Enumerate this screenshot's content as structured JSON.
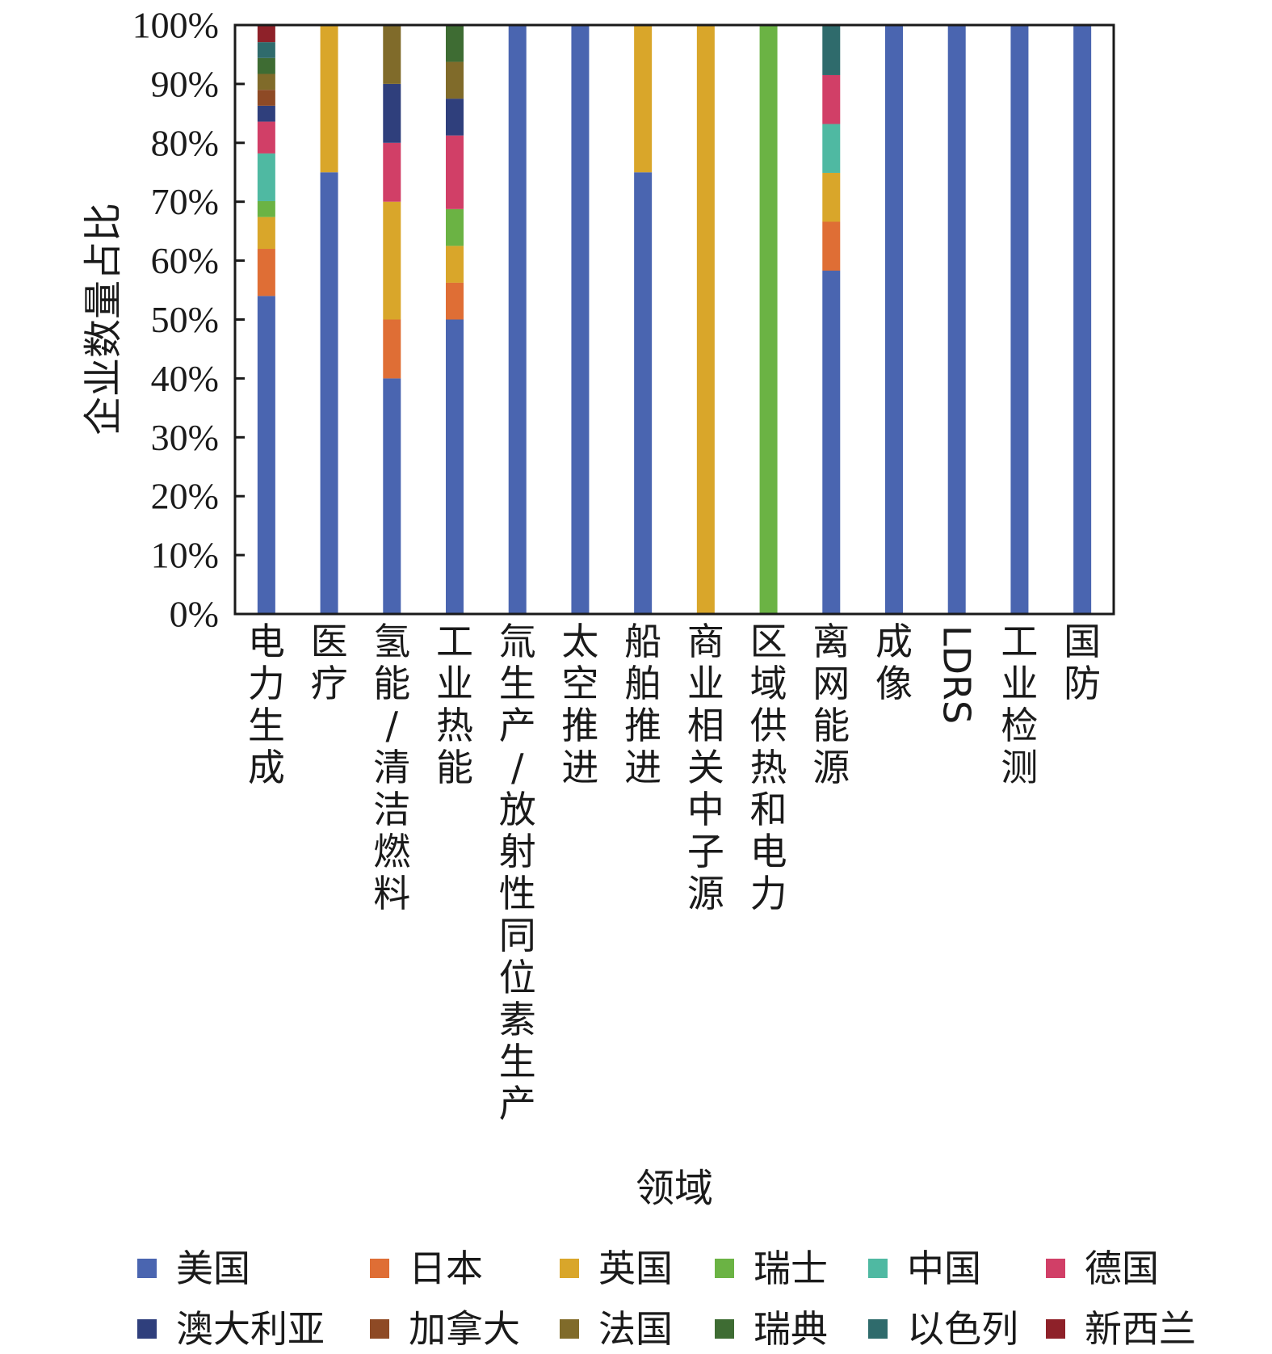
{
  "chart_data": {
    "type": "bar",
    "stacked": true,
    "normalized": true,
    "title": "",
    "ylabel": "企业数量占比",
    "xlabel": "领域",
    "ylim": [
      0,
      100
    ],
    "yticks": [
      "0%",
      "10%",
      "20%",
      "30%",
      "40%",
      "50%",
      "60%",
      "70%",
      "80%",
      "90%",
      "100%"
    ],
    "grid": false,
    "legend_position": "bottom",
    "categories": [
      "电力生成",
      "医疗",
      "氢能/清洁燃料",
      "工业热能",
      "氚生产/放射性同位素生产",
      "太空推进",
      "船舶推进",
      "商业相关中子源",
      "区域供热和电力",
      "离网能源",
      "成像",
      "LDRS",
      "工业检测",
      "国防"
    ],
    "category_vertical": [
      true,
      true,
      true,
      true,
      true,
      true,
      true,
      true,
      true,
      true,
      true,
      false,
      true,
      true
    ],
    "series": [
      {
        "name": "美国",
        "color": "#4a65b0",
        "values": [
          54,
          75,
          40,
          50,
          100,
          100,
          75,
          0,
          0,
          58.3,
          100,
          100,
          100,
          100
        ]
      },
      {
        "name": "日本",
        "color": "#df6e35",
        "values": [
          8,
          0,
          10,
          6.25,
          0,
          0,
          0,
          0,
          0,
          8.3,
          0,
          0,
          0,
          0
        ]
      },
      {
        "name": "英国",
        "color": "#d9a62a",
        "values": [
          5.4,
          25,
          20,
          6.25,
          0,
          0,
          25,
          100,
          0,
          8.3,
          0,
          0,
          0,
          0
        ]
      },
      {
        "name": "瑞士",
        "color": "#6bb344",
        "values": [
          2.7,
          0,
          0,
          6.25,
          0,
          0,
          0,
          0,
          100,
          0,
          0,
          0,
          0,
          0
        ]
      },
      {
        "name": "中国",
        "color": "#4fb9a2",
        "values": [
          8.1,
          0,
          0,
          0,
          0,
          0,
          0,
          0,
          0,
          8.3,
          0,
          0,
          0,
          0
        ]
      },
      {
        "name": "德国",
        "color": "#d13f67",
        "values": [
          5.4,
          0,
          10,
          12.5,
          0,
          0,
          0,
          0,
          0,
          8.3,
          0,
          0,
          0,
          0
        ]
      },
      {
        "name": "澳大利亚",
        "color": "#2f3f7c",
        "values": [
          2.7,
          0,
          10,
          6.25,
          0,
          0,
          0,
          0,
          0,
          0,
          0,
          0,
          0,
          0
        ]
      },
      {
        "name": "加拿大",
        "color": "#8e4a25",
        "values": [
          2.7,
          0,
          0,
          0,
          0,
          0,
          0,
          0,
          0,
          0,
          0,
          0,
          0,
          0
        ]
      },
      {
        "name": "法国",
        "color": "#806b2a",
        "values": [
          2.7,
          0,
          10,
          6.25,
          0,
          0,
          0,
          0,
          0,
          0,
          0,
          0,
          0,
          0
        ]
      },
      {
        "name": "瑞典",
        "color": "#3e6c33",
        "values": [
          2.7,
          0,
          0,
          6.25,
          0,
          0,
          0,
          0,
          0,
          0,
          0,
          0,
          0,
          0
        ]
      },
      {
        "name": "以色列",
        "color": "#2f6b6c",
        "values": [
          2.7,
          0,
          0,
          0,
          0,
          0,
          0,
          0,
          0,
          8.5,
          0,
          0,
          0,
          0
        ]
      },
      {
        "name": "新西兰",
        "color": "#8e2129",
        "values": [
          2.7,
          0,
          0,
          0,
          0,
          0,
          0,
          0,
          0,
          0,
          0,
          0,
          0,
          0
        ]
      }
    ]
  }
}
